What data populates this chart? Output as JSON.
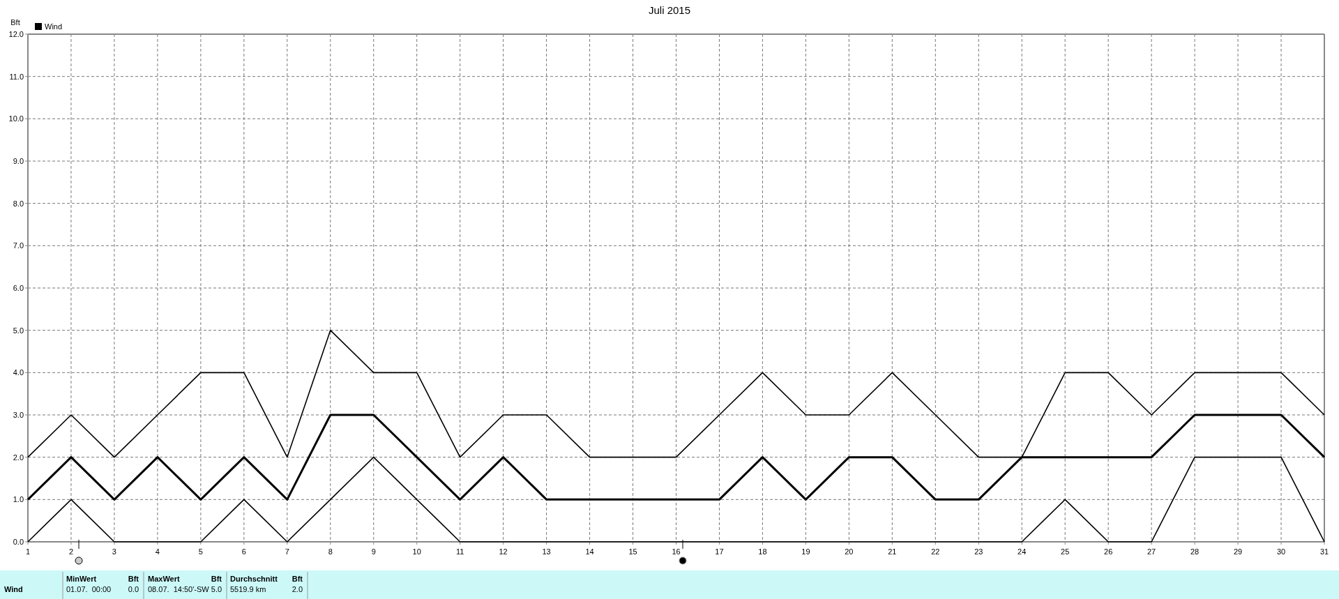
{
  "chart_data": {
    "type": "line",
    "title": "Juli 2015",
    "ylabel": "Bft",
    "x": [
      1,
      2,
      3,
      4,
      5,
      6,
      7,
      8,
      9,
      10,
      11,
      12,
      13,
      14,
      15,
      16,
      17,
      18,
      19,
      20,
      21,
      22,
      23,
      24,
      25,
      26,
      27,
      28,
      29,
      30,
      31
    ],
    "series": [
      {
        "color": "#000000",
        "values": [
          2,
          3,
          2,
          3,
          4,
          4,
          2,
          5,
          4,
          4,
          2,
          3,
          3,
          2,
          2,
          2,
          3,
          4,
          3,
          3,
          4,
          3,
          2,
          2,
          4,
          4,
          3,
          4,
          4,
          4,
          3
        ]
      },
      {
        "name": "Wind",
        "color": "#000000",
        "values": [
          1,
          2,
          1,
          2,
          1,
          2,
          1,
          3,
          3,
          2,
          1,
          2,
          1,
          1,
          1,
          1,
          1,
          2,
          1,
          2,
          2,
          1,
          1,
          2,
          2,
          2,
          2,
          3,
          3,
          3,
          2
        ]
      },
      {
        "color": "#000000",
        "values": [
          0,
          1,
          0,
          0,
          0,
          1,
          0,
          1,
          2,
          1,
          0,
          0,
          0,
          0,
          0,
          0,
          0,
          0,
          0,
          0,
          0,
          0,
          0,
          0,
          1,
          0,
          0,
          2,
          2,
          2,
          0
        ]
      }
    ],
    "xlim": [
      1,
      31
    ],
    "xticks": [
      1,
      2,
      3,
      4,
      5,
      6,
      7,
      8,
      9,
      10,
      11,
      12,
      13,
      14,
      15,
      16,
      17,
      18,
      19,
      20,
      21,
      22,
      23,
      24,
      25,
      26,
      27,
      28,
      29,
      30,
      31
    ],
    "ylim": [
      0,
      12
    ],
    "yticks": [
      {
        "value": 0,
        "label": "0.0"
      },
      {
        "value": 1,
        "label": "1.0"
      },
      {
        "value": 2,
        "label": "2.0"
      },
      {
        "value": 3,
        "label": "3.0"
      },
      {
        "value": 4,
        "label": "4.0"
      },
      {
        "value": 5,
        "label": "5.0"
      },
      {
        "value": 6,
        "label": "6.0"
      },
      {
        "value": 7,
        "label": "7.0"
      },
      {
        "value": 8,
        "label": "8.0"
      },
      {
        "value": 9,
        "label": "9.0"
      },
      {
        "value": 10,
        "label": "10.0"
      },
      {
        "value": 11,
        "label": "11.0"
      },
      {
        "value": 12,
        "label": "12.0"
      }
    ],
    "grid": true,
    "legend": "top left",
    "marker": "none",
    "line_style": "solid",
    "annotations": [
      "Wind",
      "MinWert",
      "Bft",
      "01.07.  00:00",
      "0.0",
      "MaxWert",
      "Bft",
      "08.07.  14:50'-SW 5.0",
      "Durchschnitt",
      "Bft",
      "5519.9 km",
      "2.0"
    ]
  }
}
